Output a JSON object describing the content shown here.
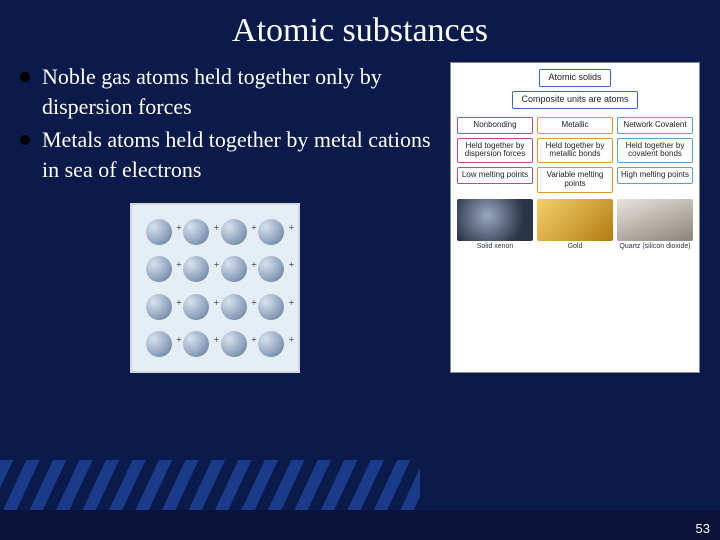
{
  "title": "Atomic substances",
  "bullets": [
    "Noble gas atoms held together only by dispersion forces",
    "Metals atoms held together by metal cations in sea of electrons"
  ],
  "metal_figure": {
    "grid": 4,
    "sphere_color_light": "#d8e2ee",
    "sphere_color_dark": "#5a6e88",
    "bg_color": "#e6eef5",
    "border_color": "#cfd6de",
    "charge_symbol": "+"
  },
  "diagram": {
    "top_box": {
      "label": "Atomic solids",
      "border_color": "#3a66c4"
    },
    "sub_box": {
      "label": "Composite units are atoms",
      "border_color": "#3a66c4"
    },
    "columns": [
      {
        "header": {
          "label": "Nonbonding",
          "border_color": "#c1487a"
        },
        "detail1": {
          "label": "Held together by dispersion forces",
          "border_color": "#c1487a"
        },
        "detail2": {
          "label": "Low melting points",
          "border_color": "#c1487a"
        },
        "image_bg": "radial-gradient(circle at 40% 40%, #9aa8bf 0%, #2a3548 70%)",
        "image_label": "Solid xenon"
      },
      {
        "header": {
          "label": "Metallic",
          "border_color": "#d99a2b"
        },
        "detail1": {
          "label": "Held together by metallic bonds",
          "border_color": "#d99a2b"
        },
        "detail2": {
          "label": "Variable melting points",
          "border_color": "#d99a2b"
        },
        "image_bg": "linear-gradient(135deg, #f4d06a, #b37b12)",
        "image_label": "Gold"
      },
      {
        "header": {
          "label": "Network Covalent",
          "border_color": "#5aa0d0"
        },
        "detail1": {
          "label": "Held together by covalent bonds",
          "border_color": "#5aa0d0"
        },
        "detail2": {
          "label": "High melting points",
          "border_color": "#5aa0d0"
        },
        "image_bg": "linear-gradient(160deg, #e8e4de, #8c847a)",
        "image_label": "Quartz (silicon dioxide)"
      }
    ]
  },
  "page_number": "53",
  "colors": {
    "slide_bg": "#0a1a4a",
    "stripe_light": "#1a3a8a",
    "bottom_bar": "#091238",
    "text": "#ffffff"
  }
}
